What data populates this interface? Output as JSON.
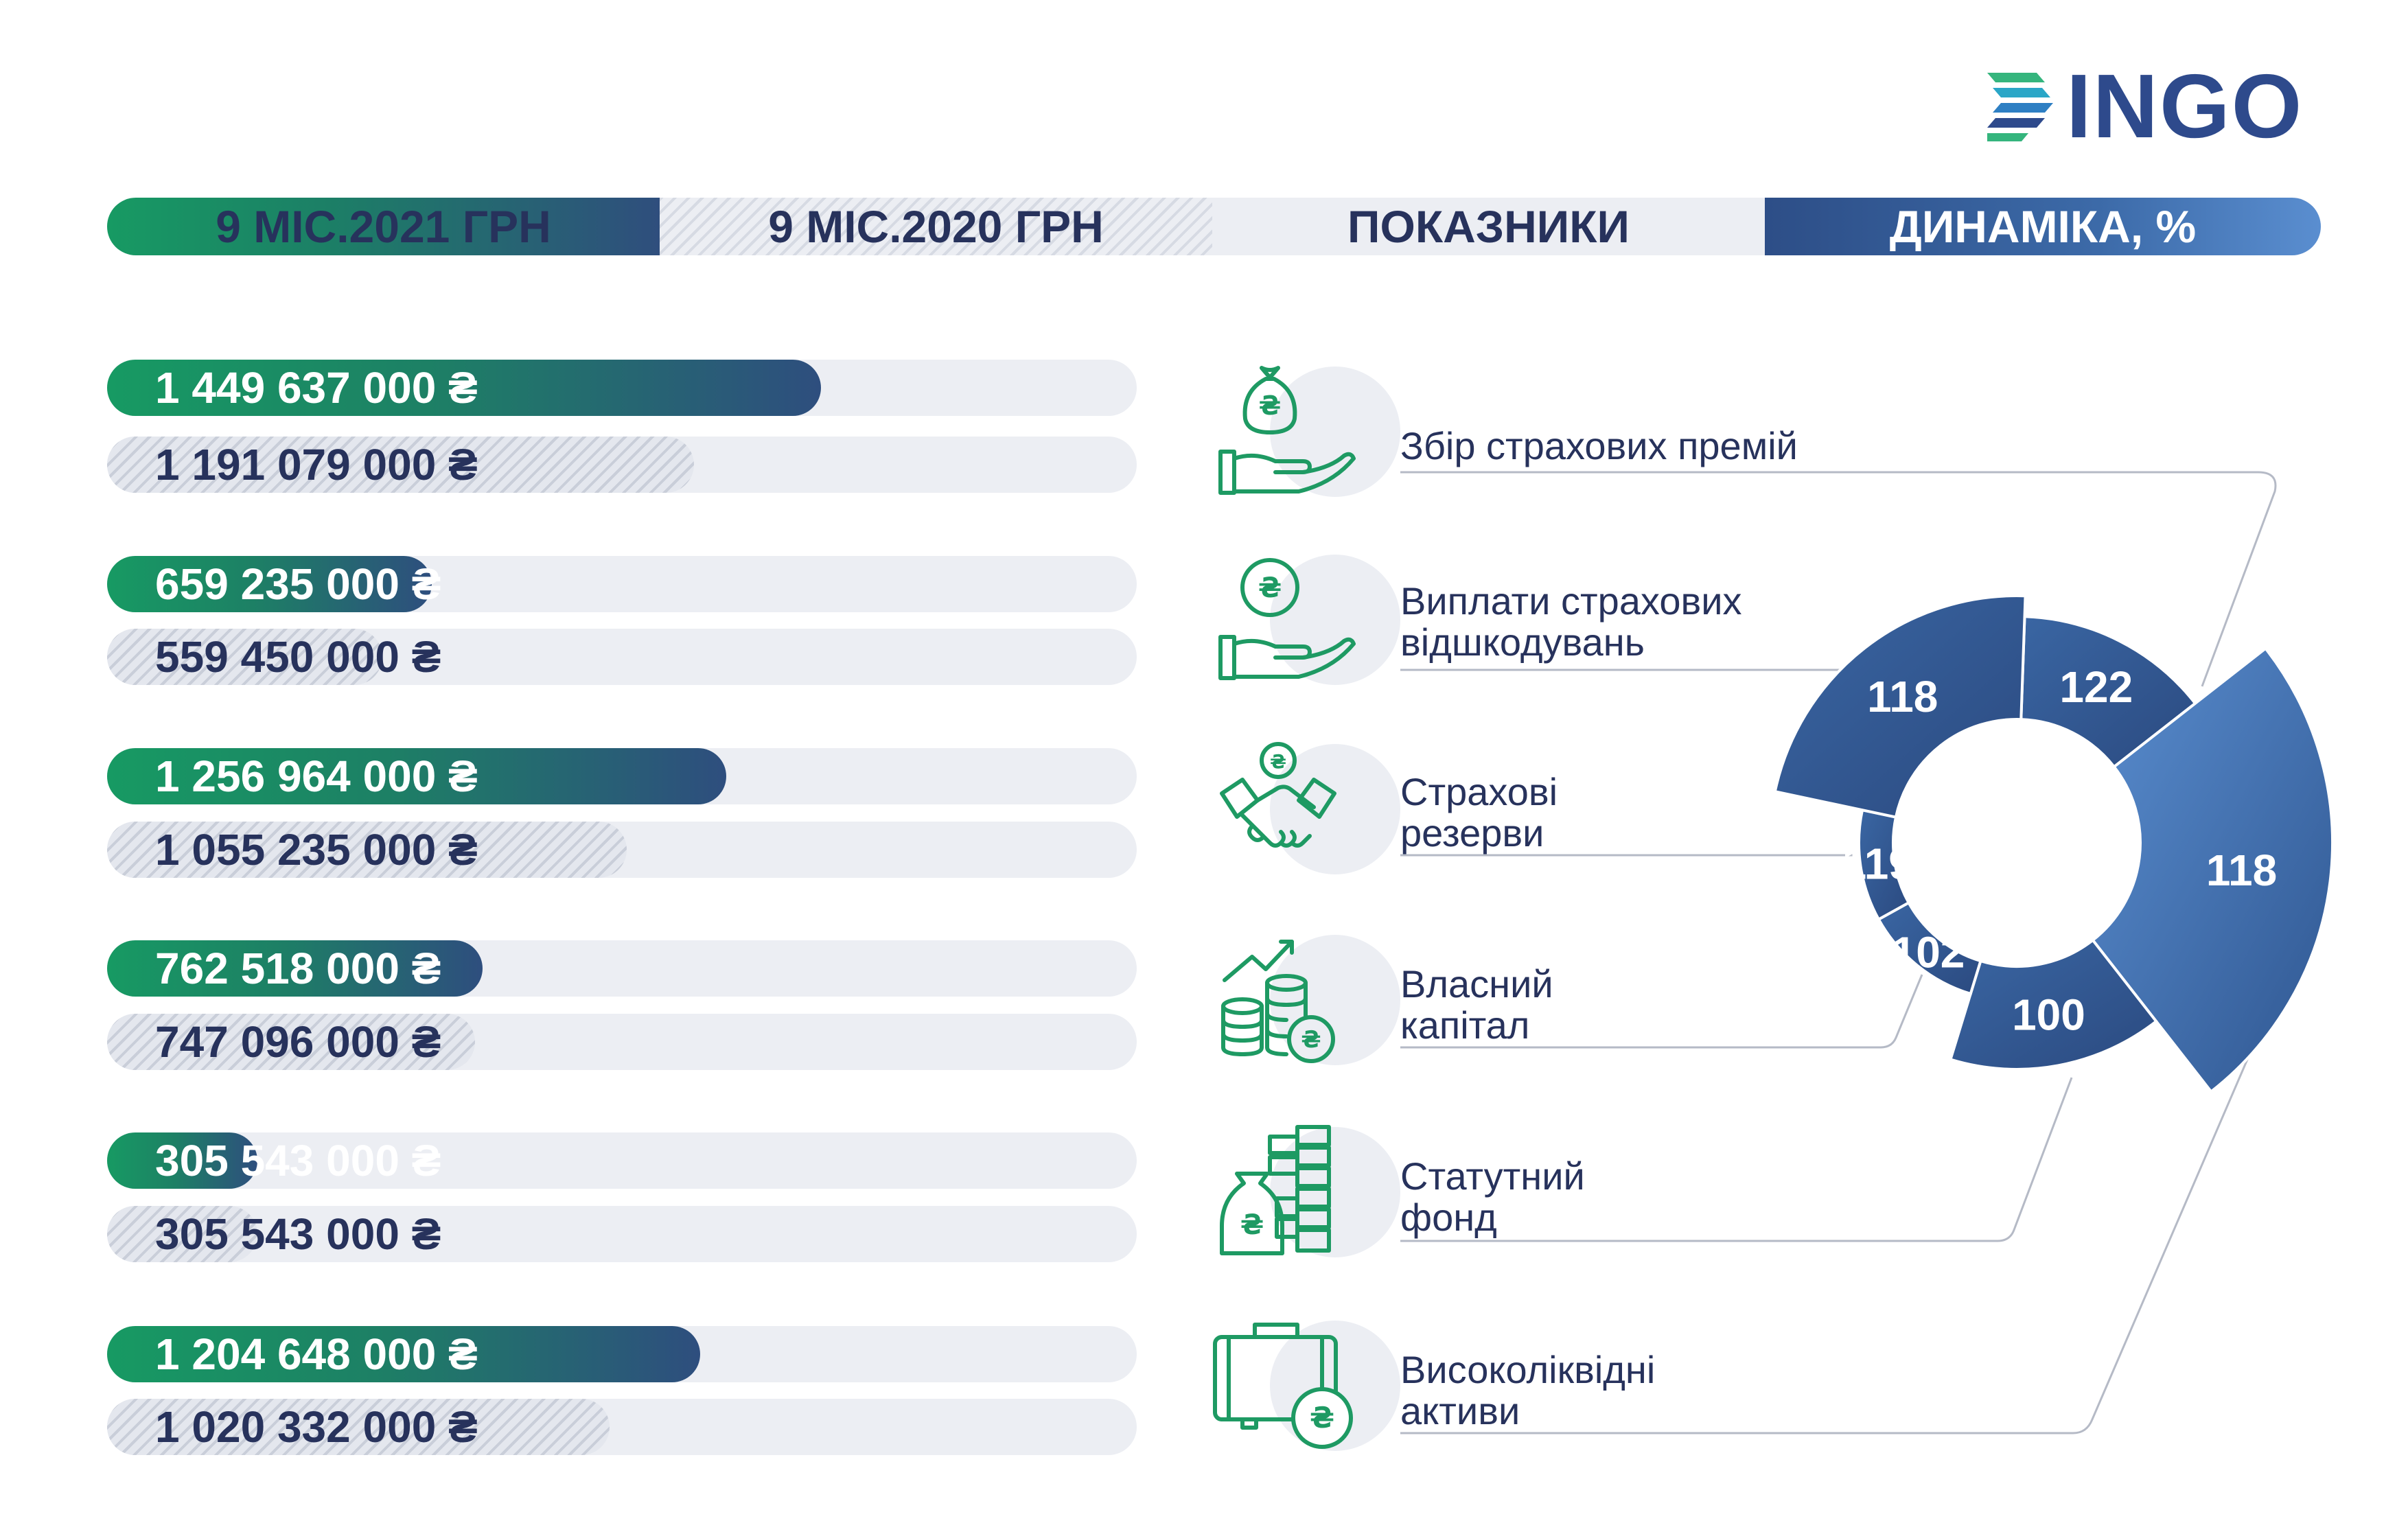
{
  "brand": {
    "name": "INGO"
  },
  "header": {
    "col1": "9 МІС.2021 ГРН",
    "col2": "9 МІС.2020 ГРН",
    "col3": "ПОКАЗНИКИ",
    "col4": "ДИНАМІКА, %"
  },
  "indicators": [
    {
      "label_line1": "Збір страхових премій",
      "label_line2": "",
      "icon": "money-bag-in-hand-icon",
      "current": "1 449 637 000 ₴",
      "previous": "1 191 079 000 ₴"
    },
    {
      "label_line1": "Виплати страхових",
      "label_line2": "відшкодувань",
      "icon": "coin-in-hand-icon",
      "current": "659 235 000 ₴",
      "previous": "559 450 000 ₴"
    },
    {
      "label_line1": "Страхові",
      "label_line2": "резерви",
      "icon": "handshake-icon",
      "current": "1 256 964 000 ₴",
      "previous": "1 055 235 000 ₴"
    },
    {
      "label_line1": "Власний",
      "label_line2": "капітал",
      "icon": "coin-stacks-growth-icon",
      "current": "762 518 000 ₴",
      "previous": "747 096 000 ₴"
    },
    {
      "label_line1": "Статутний",
      "label_line2": "фонд",
      "icon": "money-bag-stacks-icon",
      "current": "305 543 000 ₴",
      "previous": "305 543 000 ₴"
    },
    {
      "label_line1": "Високоліквідні",
      "label_line2": "активи",
      "icon": "briefcase-coin-icon",
      "current": "1 204 648 000 ₴",
      "previous": "1 020 332 000 ₴"
    }
  ],
  "chart_data": [
    {
      "type": "bar",
      "orientation": "horizontal",
      "currency": "UAH",
      "categories": [
        "Збір страхових премій",
        "Виплати страхових відшкодувань",
        "Страхові резерви",
        "Власний капітал",
        "Статутний фонд",
        "Високоліквідні активи"
      ],
      "series": [
        {
          "name": "9 МІС.2021 ГРН",
          "values": [
            1449637000,
            659235000,
            1256964000,
            762518000,
            305543000,
            1204648000
          ]
        },
        {
          "name": "9 МІС.2020 ГРН",
          "values": [
            1191079000,
            559450000,
            1055235000,
            747096000,
            305543000,
            1020332000
          ]
        }
      ],
      "axis_max": 1449637000
    },
    {
      "type": "pie",
      "variant": "donut",
      "title": "ДИНАМІКА, %",
      "slices": [
        {
          "category": "Збір страхових премій",
          "value": 122
        },
        {
          "category": "Високоліквідні активи",
          "value": 118
        },
        {
          "category": "Статутний фонд",
          "value": 100
        },
        {
          "category": "Власний капітал",
          "value": 102
        },
        {
          "category": "Страхові резерви",
          "value": 119
        },
        {
          "category": "Виплати страхових відшкодувань",
          "value": 118
        }
      ],
      "colors": {
        "primary": "#2e4e86",
        "secondary": "#3f6eae",
        "light": "#5a8ed0"
      }
    }
  ],
  "colors": {
    "brand_blue": "#2e4a8c",
    "brand_green": "#179a63",
    "text_dark": "#27325c",
    "track": "#eceef3"
  }
}
